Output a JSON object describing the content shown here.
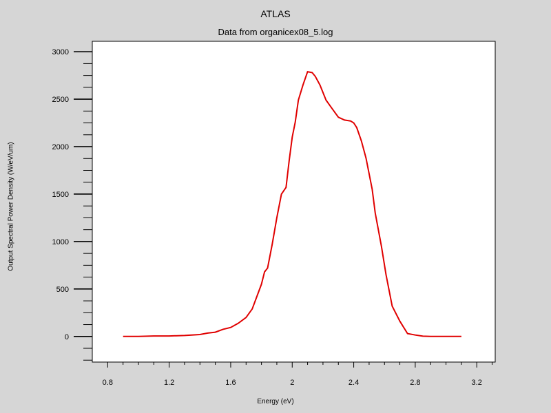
{
  "chart_data": {
    "type": "line",
    "title": "ATLAS",
    "subtitle": "Data from organicex08_5.log",
    "xlabel": "Energy (eV)",
    "ylabel": "Output Spectral Power Density (W/eV/um)",
    "xlim": [
      0.7,
      3.32
    ],
    "ylim": [
      -270,
      3110
    ],
    "x_ticks": [
      0.8,
      1.2,
      1.6,
      2.0,
      2.4,
      2.8,
      3.2
    ],
    "x_tick_labels": [
      "0.8",
      "1.2",
      "1.6",
      "2",
      "2.4",
      "2.8",
      "3.2"
    ],
    "y_ticks": [
      0,
      500,
      1000,
      1500,
      2000,
      2500,
      3000
    ],
    "y_tick_labels": [
      "0",
      "500",
      "1000",
      "1500",
      "2000",
      "2500",
      "3000"
    ],
    "grid": false,
    "series": [
      {
        "color": "#e00000",
        "x": [
          0.9,
          1.0,
          1.1,
          1.2,
          1.3,
          1.4,
          1.45,
          1.5,
          1.55,
          1.6,
          1.65,
          1.7,
          1.74,
          1.77,
          1.8,
          1.82,
          1.84,
          1.87,
          1.9,
          1.93,
          1.96,
          1.98,
          2.0,
          2.02,
          2.04,
          2.07,
          2.1,
          2.13,
          2.15,
          2.18,
          2.22,
          2.26,
          2.3,
          2.34,
          2.38,
          2.4,
          2.42,
          2.45,
          2.48,
          2.52,
          2.54,
          2.58,
          2.61,
          2.65,
          2.7,
          2.75,
          2.8,
          2.85,
          2.9,
          3.0,
          3.1
        ],
        "y": [
          0,
          0,
          5,
          5,
          10,
          20,
          35,
          45,
          75,
          95,
          140,
          200,
          290,
          420,
          550,
          680,
          720,
          970,
          1250,
          1500,
          1570,
          1850,
          2100,
          2260,
          2490,
          2650,
          2790,
          2780,
          2740,
          2650,
          2490,
          2400,
          2310,
          2280,
          2270,
          2250,
          2200,
          2060,
          1880,
          1550,
          1300,
          950,
          650,
          320,
          160,
          30,
          15,
          3,
          0,
          0,
          0
        ]
      }
    ]
  }
}
